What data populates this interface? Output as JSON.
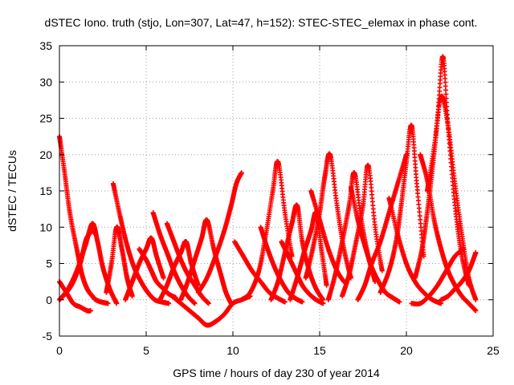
{
  "chart_data": {
    "type": "scatter",
    "title": "dSTEC Iono. truth (stjo, Lon=307, Lat=47, h=152): STEC-STEC_elemax in phase cont.",
    "xlabel": "GPS time / hours of day 230 of year 2014",
    "ylabel": "dSTEC  / TECUs",
    "xlim": [
      0,
      25
    ],
    "ylim": [
      -5,
      35
    ],
    "xticks": [
      0,
      5,
      10,
      15,
      20,
      25
    ],
    "yticks": [
      -5,
      0,
      5,
      10,
      15,
      20,
      25,
      30,
      35
    ],
    "grid": true,
    "marker": "+",
    "series_color": "#ff0000",
    "series": [
      {
        "x": [
          0.0,
          0.3,
          0.6,
          1.0,
          1.3,
          1.6,
          1.9,
          2.1,
          2.4,
          2.8
        ],
        "y": [
          22.5,
          17.5,
          12.0,
          7.0,
          3.5,
          1.5,
          0.5,
          0.0,
          -0.3,
          -0.5
        ]
      },
      {
        "x": [
          0.0,
          0.4,
          0.8,
          1.2,
          1.6,
          1.8
        ],
        "y": [
          2.5,
          1.0,
          -0.5,
          -1.0,
          -1.5,
          -1.5
        ]
      },
      {
        "x": [
          0.0,
          0.5,
          1.0,
          1.5,
          1.9,
          2.2,
          2.5,
          2.9,
          3.3
        ],
        "y": [
          0.0,
          1.5,
          4.0,
          7.5,
          10.5,
          8.0,
          4.5,
          1.5,
          -0.5
        ]
      },
      {
        "x": [
          0.0,
          0.4,
          0.8,
          1.2,
          1.5,
          1.7,
          1.9,
          2.1
        ],
        "y": [
          0.0,
          1.0,
          2.5,
          5.0,
          8.0,
          9.0,
          9.5,
          9.0
        ]
      },
      {
        "x": [
          2.7,
          3.0,
          3.3,
          3.6,
          3.9,
          4.2
        ],
        "y": [
          1.0,
          5.0,
          10.0,
          7.0,
          3.0,
          0.5
        ]
      },
      {
        "x": [
          3.1,
          3.5,
          3.9,
          4.3,
          4.7,
          5.1,
          5.5,
          5.9,
          6.3
        ],
        "y": [
          16.0,
          11.5,
          7.5,
          4.5,
          2.5,
          1.0,
          0.0,
          -0.3,
          -0.5
        ]
      },
      {
        "x": [
          3.8,
          4.2,
          4.6,
          5.0,
          5.3,
          5.6,
          6.0
        ],
        "y": [
          0.0,
          2.5,
          5.0,
          7.0,
          8.5,
          6.0,
          3.0
        ]
      },
      {
        "x": [
          4.6,
          5.0,
          5.3,
          5.6,
          6.0,
          6.3,
          6.7
        ],
        "y": [
          7.0,
          5.5,
          4.0,
          2.5,
          1.5,
          0.8,
          0.3
        ]
      },
      {
        "x": [
          5.4,
          5.8,
          6.2,
          6.6,
          7.0,
          7.4,
          7.8
        ],
        "y": [
          12.0,
          9.0,
          6.5,
          4.0,
          2.0,
          0.5,
          -0.5
        ]
      },
      {
        "x": [
          5.8,
          6.2,
          6.6,
          7.0,
          7.3,
          7.6,
          8.0
        ],
        "y": [
          0.0,
          2.0,
          4.5,
          6.5,
          8.0,
          5.0,
          2.0
        ]
      },
      {
        "x": [
          6.2,
          6.6,
          7.0,
          7.4,
          7.8,
          8.2,
          8.6
        ],
        "y": [
          10.5,
          8.0,
          5.5,
          3.5,
          2.0,
          0.5,
          -0.5
        ]
      },
      {
        "x": [
          6.5,
          7.0,
          7.5,
          8.0,
          8.5,
          9.0,
          9.5,
          10.0,
          10.5,
          11.0
        ],
        "y": [
          0.5,
          -0.5,
          -1.5,
          -2.5,
          -3.5,
          -3.0,
          -2.0,
          -0.5,
          0.0,
          0.5
        ]
      },
      {
        "x": [
          7.0,
          7.4,
          7.8,
          8.2,
          8.5,
          8.9,
          9.3,
          9.6,
          9.9
        ],
        "y": [
          0.0,
          2.5,
          5.5,
          8.5,
          11.0,
          7.0,
          3.5,
          1.0,
          -0.5
        ]
      },
      {
        "x": [
          8.0,
          8.5,
          9.0,
          9.5,
          9.9,
          10.2,
          10.5
        ],
        "y": [
          1.0,
          3.0,
          6.0,
          9.5,
          13.0,
          16.0,
          17.5
        ]
      },
      {
        "x": [
          10.1,
          10.6,
          11.1,
          11.6,
          12.1,
          12.6,
          13.0
        ],
        "y": [
          8.0,
          6.0,
          4.0,
          2.5,
          1.0,
          0.2,
          -0.3
        ]
      },
      {
        "x": [
          10.5,
          11.0,
          11.5,
          11.9,
          12.3,
          12.6,
          13.0,
          13.4
        ],
        "y": [
          0.0,
          1.0,
          4.0,
          9.0,
          15.0,
          19.0,
          12.0,
          6.0
        ]
      },
      {
        "x": [
          11.6,
          12.0,
          12.4,
          12.8,
          13.2,
          13.6,
          14.0
        ],
        "y": [
          10.0,
          7.0,
          4.5,
          2.5,
          1.0,
          0.2,
          -0.3
        ]
      },
      {
        "x": [
          12.2,
          12.6,
          13.0,
          13.4,
          13.7,
          14.0,
          14.4,
          14.8,
          15.2
        ],
        "y": [
          0.0,
          2.5,
          6.5,
          10.5,
          13.0,
          8.0,
          4.0,
          1.5,
          0.0
        ]
      },
      {
        "x": [
          12.8,
          13.2,
          13.6,
          14.0,
          14.4,
          14.8,
          15.2
        ],
        "y": [
          8.0,
          6.0,
          4.0,
          2.0,
          0.8,
          0.0,
          -0.5
        ]
      },
      {
        "x": [
          13.3,
          13.7,
          14.1,
          14.5,
          14.8,
          15.1,
          15.4
        ],
        "y": [
          0.0,
          3.0,
          6.5,
          9.5,
          12.0,
          7.0,
          2.0
        ]
      },
      {
        "x": [
          14.2,
          14.6,
          15.0,
          15.3,
          15.6,
          16.0,
          16.4,
          16.8
        ],
        "y": [
          3.0,
          7.0,
          12.0,
          17.0,
          20.0,
          13.0,
          7.0,
          3.0
        ]
      },
      {
        "x": [
          14.5,
          15.0,
          15.5,
          16.0,
          16.4
        ],
        "y": [
          15.0,
          11.0,
          7.0,
          4.0,
          2.5
        ]
      },
      {
        "x": [
          15.5,
          15.9,
          16.3,
          16.7,
          17.0,
          17.4,
          17.8,
          18.2
        ],
        "y": [
          0.0,
          3.5,
          8.0,
          13.0,
          17.5,
          11.0,
          6.0,
          2.5
        ]
      },
      {
        "x": [
          16.3,
          16.7,
          17.1,
          17.5,
          17.8,
          18.2,
          18.6
        ],
        "y": [
          0.5,
          3.5,
          8.0,
          13.0,
          18.5,
          10.0,
          4.0
        ]
      },
      {
        "x": [
          16.8,
          17.2,
          17.6,
          18.0,
          18.4,
          18.8,
          19.2,
          19.6
        ],
        "y": [
          15.5,
          11.0,
          7.5,
          4.5,
          2.5,
          1.0,
          0.3,
          -0.3
        ]
      },
      {
        "x": [
          17.2,
          17.6,
          18.0,
          18.5,
          19.0,
          19.5,
          20.0
        ],
        "y": [
          0.0,
          2.0,
          5.0,
          8.0,
          12.0,
          16.0,
          20.0
        ]
      },
      {
        "x": [
          18.5,
          19.0,
          19.4,
          19.7,
          20.0,
          20.3,
          20.6,
          21.0
        ],
        "y": [
          1.0,
          4.0,
          8.0,
          13.0,
          19.0,
          24.0,
          16.0,
          6.0
        ]
      },
      {
        "x": [
          19.0,
          19.5,
          20.0,
          20.5,
          21.0,
          21.5,
          22.0
        ],
        "y": [
          14.0,
          9.0,
          5.0,
          2.5,
          1.0,
          0.0,
          -0.5
        ]
      },
      {
        "x": [
          20.8,
          21.2,
          21.6,
          22.0,
          22.4,
          22.8,
          23.2,
          23.6,
          24.0
        ],
        "y": [
          20.0,
          16.5,
          11.0,
          7.0,
          4.0,
          2.0,
          0.5,
          -0.5,
          -1.5
        ]
      },
      {
        "x": [
          20.5,
          20.9,
          21.2,
          21.5,
          21.8,
          22.1,
          22.4,
          22.8,
          23.2,
          23.6
        ],
        "y": [
          3.0,
          7.0,
          12.0,
          18.0,
          25.0,
          33.5,
          24.0,
          13.0,
          6.0,
          2.0
        ]
      },
      {
        "x": [
          21.2,
          21.6,
          22.0,
          22.4,
          22.8,
          23.2,
          23.6,
          24.0
        ],
        "y": [
          15.0,
          21.0,
          28.0,
          24.0,
          16.0,
          9.0,
          3.0,
          0.0
        ]
      },
      {
        "x": [
          22.0,
          22.4,
          22.8,
          23.2,
          23.6,
          24.0
        ],
        "y": [
          0.0,
          0.5,
          1.5,
          2.5,
          4.0,
          6.5
        ]
      },
      {
        "x": [
          20.3,
          20.8,
          21.3,
          21.8,
          22.3,
          22.8,
          23.3
        ],
        "y": [
          -0.5,
          -0.5,
          0.5,
          2.0,
          4.0,
          6.0,
          7.0
        ]
      }
    ]
  }
}
